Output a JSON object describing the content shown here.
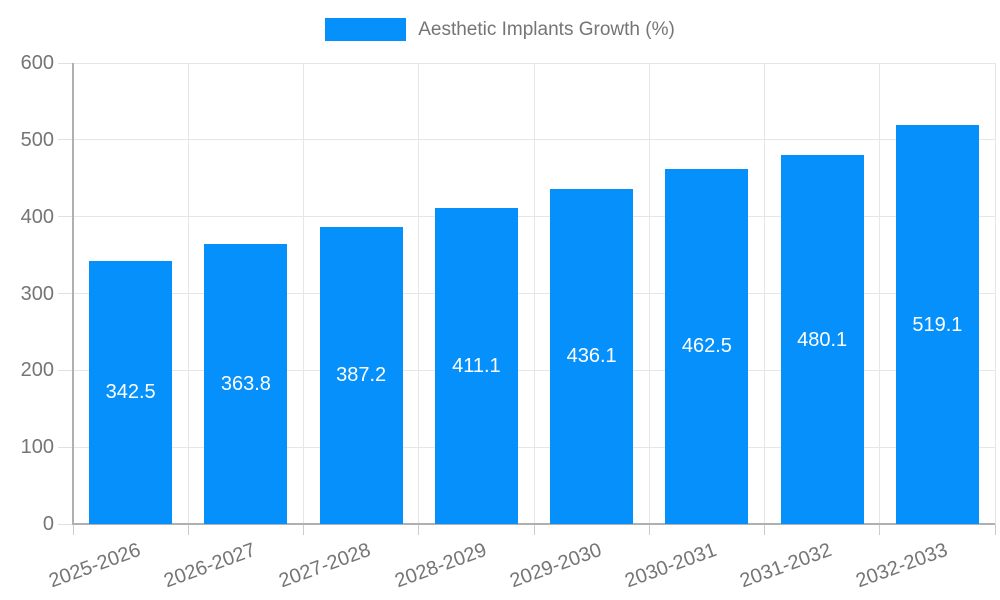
{
  "legend": {
    "label": "Aesthetic Implants Growth (%)"
  },
  "chart_data": {
    "type": "bar",
    "title": "",
    "xlabel": "",
    "ylabel": "",
    "categories": [
      "2025-2026",
      "2026-2027",
      "2027-2028",
      "2028-2029",
      "2029-2030",
      "2030-2031",
      "2031-2032",
      "2032-2033"
    ],
    "series": [
      {
        "name": "Aesthetic Implants Growth (%)",
        "values": [
          342.5,
          363.8,
          387.2,
          411.1,
          436.1,
          462.5,
          480.1,
          519.1
        ]
      }
    ],
    "value_labels": [
      "342.5",
      "363.8",
      "387.2",
      "411.1",
      "436.1",
      "462.5",
      "480.1",
      "519.1"
    ],
    "yticks": [
      0,
      100,
      200,
      300,
      400,
      500,
      600
    ],
    "ylim": [
      0,
      600
    ],
    "grid": true,
    "legend_position": "top-center",
    "colors": {
      "bar": "#0590fb",
      "value_label": "#ffffff",
      "axis_text": "#757575",
      "gridline": "#e6e6e6",
      "axis_line": "#b0b0b0"
    }
  }
}
